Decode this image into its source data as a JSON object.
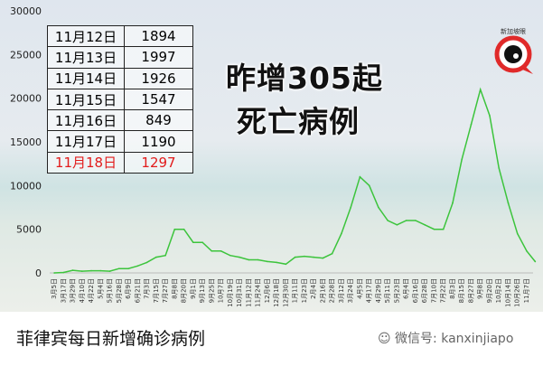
{
  "chart_data": {
    "type": "line",
    "title": "",
    "ylim": [
      0,
      30000
    ],
    "yticks": [
      0,
      5000,
      10000,
      15000,
      20000,
      25000,
      30000
    ],
    "xtick_labels": [
      "3月5日",
      "3月17日",
      "3月29日",
      "4月10日",
      "4月22日",
      "5月4日",
      "5月16日",
      "5月28日",
      "6月9日",
      "6月21日",
      "7月3日",
      "7月15日",
      "7月27日",
      "8月8日",
      "8月20日",
      "9月1日",
      "9月13日",
      "9月25日",
      "10月7日",
      "10月19日",
      "10月31日",
      "11月12日",
      "11月24日",
      "12月6日",
      "12月18日",
      "12月30日",
      "1月11日",
      "1月23日",
      "2月4日",
      "2月16日",
      "2月28日",
      "3月12日",
      "3月24日",
      "4月5日",
      "4月17日",
      "4月29日",
      "5月11日",
      "5月23日",
      "6月4日",
      "6月16日",
      "6月28日",
      "7月10日",
      "7月22日",
      "8月3日",
      "8月15日",
      "8月27日",
      "9月8日",
      "9月20日",
      "10月2日",
      "10月14日",
      "10月26日",
      "11月7日"
    ],
    "x": [
      "2020-03-05",
      "2020-03-17",
      "2020-03-29",
      "2020-04-10",
      "2020-04-22",
      "2020-05-04",
      "2020-05-16",
      "2020-05-28",
      "2020-06-09",
      "2020-06-21",
      "2020-07-03",
      "2020-07-15",
      "2020-07-27",
      "2020-08-08",
      "2020-08-20",
      "2020-09-01",
      "2020-09-13",
      "2020-09-25",
      "2020-10-07",
      "2020-10-19",
      "2020-10-31",
      "2020-11-12",
      "2020-11-24",
      "2020-12-06",
      "2020-12-18",
      "2020-12-30",
      "2021-01-11",
      "2021-01-23",
      "2021-02-04",
      "2021-02-16",
      "2021-02-28",
      "2021-03-12",
      "2021-03-24",
      "2021-04-05",
      "2021-04-17",
      "2021-04-29",
      "2021-05-11",
      "2021-05-23",
      "2021-06-04",
      "2021-06-16",
      "2021-06-28",
      "2021-07-10",
      "2021-07-22",
      "2021-08-03",
      "2021-08-15",
      "2021-08-27",
      "2021-09-08",
      "2021-09-20",
      "2021-10-02",
      "2021-10-14",
      "2021-10-26",
      "2021-11-07",
      "2021-11-18"
    ],
    "series": [
      {
        "values": [
          0,
          50,
          300,
          200,
          250,
          250,
          200,
          500,
          500,
          800,
          1200,
          1800,
          2000,
          5000,
          5000,
          3500,
          3500,
          2500,
          2500,
          2000,
          1800,
          1500,
          1500,
          1300,
          1200,
          1000,
          1800,
          1900,
          1800,
          1700,
          2200,
          4500,
          7500,
          11000,
          10000,
          7500,
          6000,
          5500,
          6000,
          6000,
          5500,
          5000,
          5000,
          8000,
          13000,
          17000,
          21000,
          18000,
          12000,
          8000,
          4500,
          2500,
          1297
        ],
        "color": "#3cc43c"
      }
    ],
    "grid": false
  },
  "table": {
    "rows": [
      {
        "date": "11月12日",
        "value": "1894"
      },
      {
        "date": "11月13日",
        "value": "1997"
      },
      {
        "date": "11月14日",
        "value": "1926"
      },
      {
        "date": "11月15日",
        "value": "1547"
      },
      {
        "date": "11月16日",
        "value": "849"
      },
      {
        "date": "11月17日",
        "value": "1190"
      },
      {
        "date": "11月18日",
        "value": "1297",
        "highlight": "#e21b1b"
      }
    ]
  },
  "headline": {
    "line1": "昨增305起",
    "line2": "死亡病例"
  },
  "logo": {
    "text": "新加坡眼",
    "icon": "eye-pin-logo",
    "color": "#e02a2a"
  },
  "footer": {
    "caption": "菲律宾每日新增确诊病例",
    "wechat_icon": "wechat-icon",
    "wechat": "微信号: kanxinjiapo"
  }
}
